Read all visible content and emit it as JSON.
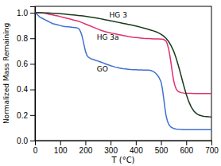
{
  "chart_data": {
    "type": "line",
    "xlabel": "T (°C)",
    "ylabel": "Normalized Mass Remaining",
    "xlim": [
      0,
      700
    ],
    "ylim": [
      0.0,
      1.05
    ],
    "xticks": [
      0,
      100,
      200,
      300,
      400,
      500,
      600,
      700
    ],
    "yticks": [
      {
        "value": 0.0,
        "label": "0.0"
      },
      0.2,
      0.4,
      0.6,
      0.8,
      {
        "value": 1.0,
        "label": "1.0"
      }
    ],
    "series": [
      {
        "color": "#4070d0",
        "x": [
          0,
          10,
          20,
          30,
          40,
          50,
          60,
          70,
          80,
          90,
          100,
          110,
          120,
          130,
          140,
          150,
          160,
          170,
          175,
          180,
          185,
          190,
          195,
          200,
          205,
          210,
          215,
          220,
          225,
          230,
          235,
          240,
          250,
          260,
          270,
          280,
          290,
          300,
          310,
          320,
          330,
          340,
          350,
          360,
          370,
          380,
          390,
          400,
          410,
          420,
          430,
          440,
          450,
          460,
          470,
          480,
          490,
          500,
          505,
          510,
          515,
          520,
          525,
          530,
          535,
          540,
          550,
          560,
          570,
          580,
          590,
          600,
          610,
          620,
          630,
          640,
          650,
          660,
          670,
          680,
          690,
          700
        ],
        "values": [
          1.0,
          0.985,
          0.965,
          0.955,
          0.945,
          0.935,
          0.925,
          0.915,
          0.91,
          0.905,
          0.9,
          0.895,
          0.892,
          0.89,
          0.888,
          0.886,
          0.884,
          0.88,
          0.873,
          0.855,
          0.83,
          0.79,
          0.745,
          0.7,
          0.672,
          0.655,
          0.648,
          0.642,
          0.638,
          0.635,
          0.632,
          0.628,
          0.622,
          0.615,
          0.608,
          0.6,
          0.593,
          0.586,
          0.58,
          0.574,
          0.57,
          0.566,
          0.562,
          0.56,
          0.558,
          0.556,
          0.555,
          0.554,
          0.553,
          0.553,
          0.552,
          0.552,
          0.552,
          0.548,
          0.54,
          0.525,
          0.5,
          0.46,
          0.41,
          0.34,
          0.26,
          0.195,
          0.155,
          0.13,
          0.115,
          0.105,
          0.095,
          0.09,
          0.088,
          0.087,
          0.086,
          0.086,
          0.086,
          0.086,
          0.086,
          0.086,
          0.086,
          0.086,
          0.086,
          0.086,
          0.086,
          0.086
        ]
      },
      {
        "color": "#e03070",
        "x": [
          0,
          10,
          20,
          30,
          40,
          50,
          60,
          70,
          80,
          90,
          100,
          110,
          120,
          130,
          140,
          150,
          160,
          170,
          180,
          190,
          200,
          210,
          220,
          230,
          240,
          250,
          260,
          270,
          280,
          290,
          300,
          310,
          320,
          330,
          340,
          350,
          360,
          370,
          380,
          390,
          400,
          410,
          420,
          430,
          440,
          450,
          460,
          470,
          480,
          490,
          500,
          510,
          520,
          525,
          530,
          535,
          540,
          545,
          550,
          555,
          560,
          565,
          570,
          580,
          590,
          600,
          610,
          620,
          630,
          640,
          650,
          660,
          670,
          680,
          690,
          700
        ],
        "values": [
          1.0,
          1.0,
          1.0,
          0.998,
          0.995,
          0.991,
          0.987,
          0.983,
          0.979,
          0.975,
          0.97,
          0.965,
          0.96,
          0.955,
          0.95,
          0.945,
          0.94,
          0.935,
          0.928,
          0.92,
          0.912,
          0.904,
          0.896,
          0.888,
          0.88,
          0.872,
          0.864,
          0.857,
          0.851,
          0.846,
          0.842,
          0.838,
          0.834,
          0.83,
          0.826,
          0.822,
          0.818,
          0.814,
          0.811,
          0.808,
          0.806,
          0.804,
          0.802,
          0.8,
          0.799,
          0.798,
          0.797,
          0.796,
          0.796,
          0.795,
          0.794,
          0.792,
          0.778,
          0.755,
          0.718,
          0.665,
          0.6,
          0.53,
          0.47,
          0.43,
          0.405,
          0.39,
          0.382,
          0.375,
          0.372,
          0.37,
          0.369,
          0.369,
          0.368,
          0.368,
          0.368,
          0.368,
          0.368,
          0.368,
          0.368,
          0.368
        ]
      },
      {
        "color": "#1a3a1a",
        "x": [
          0,
          10,
          20,
          30,
          40,
          50,
          60,
          70,
          80,
          90,
          100,
          110,
          120,
          130,
          140,
          150,
          160,
          170,
          180,
          190,
          200,
          210,
          220,
          230,
          240,
          250,
          260,
          270,
          280,
          290,
          300,
          310,
          320,
          330,
          340,
          350,
          360,
          370,
          380,
          390,
          400,
          410,
          420,
          430,
          440,
          450,
          460,
          470,
          480,
          490,
          500,
          510,
          520,
          530,
          540,
          550,
          560,
          570,
          580,
          590,
          600,
          610,
          620,
          630,
          640,
          650,
          660,
          670,
          680,
          690,
          700
        ],
        "values": [
          1.0,
          1.0,
          1.0,
          1.0,
          0.999,
          0.998,
          0.997,
          0.996,
          0.995,
          0.994,
          0.993,
          0.991,
          0.989,
          0.987,
          0.985,
          0.983,
          0.981,
          0.979,
          0.977,
          0.975,
          0.972,
          0.969,
          0.966,
          0.963,
          0.96,
          0.957,
          0.953,
          0.949,
          0.945,
          0.941,
          0.937,
          0.933,
          0.929,
          0.925,
          0.921,
          0.917,
          0.913,
          0.909,
          0.905,
          0.901,
          0.896,
          0.891,
          0.886,
          0.881,
          0.876,
          0.87,
          0.864,
          0.858,
          0.851,
          0.843,
          0.832,
          0.818,
          0.8,
          0.775,
          0.742,
          0.7,
          0.645,
          0.578,
          0.505,
          0.43,
          0.362,
          0.305,
          0.262,
          0.232,
          0.212,
          0.2,
          0.194,
          0.19,
          0.188,
          0.186,
          0.185
        ]
      }
    ],
    "annotations": [
      {
        "text": "HG 3",
        "x": 295,
        "y": 0.965
      },
      {
        "text": "HG 3a",
        "x": 245,
        "y": 0.79
      },
      {
        "text": "GO",
        "x": 245,
        "y": 0.54
      }
    ]
  }
}
